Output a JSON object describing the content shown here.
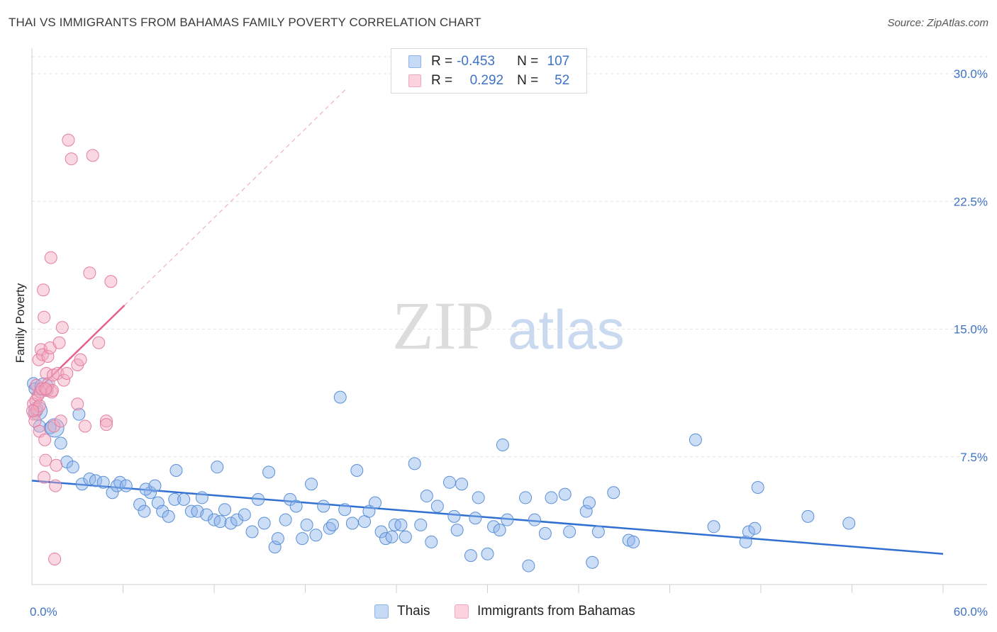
{
  "title": "THAI VS IMMIGRANTS FROM BAHAMAS FAMILY POVERTY CORRELATION CHART",
  "source": "Source: ZipAtlas.com",
  "watermark": {
    "part1": "ZIP",
    "part2": "atlas"
  },
  "legend": {
    "rows": [
      {
        "r_label": "R =",
        "r_value": "-0.453",
        "n_label": "N =",
        "n_value": "107",
        "color": "#8fb4ea"
      },
      {
        "r_label": "R =",
        "r_value": "0.292",
        "n_label": "N =",
        "n_value": "52",
        "color": "#f2a8bf"
      }
    ]
  },
  "bottom_legend": [
    {
      "label": "Thais",
      "color": "#8fb4ea"
    },
    {
      "label": "Immigrants from Bahamas",
      "color": "#f2a8bf"
    }
  ],
  "chart_data": {
    "type": "scatter",
    "title": "THAI VS IMMIGRANTS FROM BAHAMAS FAMILY POVERTY CORRELATION CHART",
    "xlabel": "",
    "ylabel": "Family Poverty",
    "xlim": [
      0,
      60
    ],
    "ylim": [
      0,
      31
    ],
    "x_tick_labels": [
      {
        "value": 0,
        "label": "0.0%"
      },
      {
        "value": 60,
        "label": "60.0%"
      }
    ],
    "y_tick_labels": [
      {
        "value": 7.5,
        "label": "7.5%"
      },
      {
        "value": 15,
        "label": "15.0%"
      },
      {
        "value": 22.5,
        "label": "22.5%"
      },
      {
        "value": 30,
        "label": "30.0%"
      }
    ],
    "grid": true,
    "series": [
      {
        "name": "Thais",
        "color": "#8fb4ea",
        "stroke": "#5a8fd8",
        "trend": {
          "x": [
            0,
            60
          ],
          "y": [
            6.1,
            1.8
          ],
          "color": "#2f6fd1"
        },
        "points": [
          [
            0.1,
            11.8
          ],
          [
            0.2,
            11.5
          ],
          [
            0.3,
            10.2
          ],
          [
            0.5,
            9.3
          ],
          [
            1.2,
            9.2
          ],
          [
            1.9,
            8.3
          ],
          [
            3.1,
            10.0
          ],
          [
            2.3,
            7.2
          ],
          [
            2.7,
            6.9
          ],
          [
            3.3,
            5.9
          ],
          [
            3.8,
            6.2
          ],
          [
            4.2,
            6.1
          ],
          [
            4.7,
            6.0
          ],
          [
            5.3,
            5.4
          ],
          [
            5.6,
            5.8
          ],
          [
            5.8,
            6.0
          ],
          [
            6.2,
            5.8
          ],
          [
            7.1,
            4.7
          ],
          [
            7.4,
            4.3
          ],
          [
            7.8,
            5.4
          ],
          [
            7.5,
            5.6
          ],
          [
            8.1,
            5.8
          ],
          [
            8.3,
            4.8
          ],
          [
            8.6,
            4.3
          ],
          [
            9.0,
            4.0
          ],
          [
            9.4,
            5.0
          ],
          [
            9.5,
            6.7
          ],
          [
            10.0,
            5.0
          ],
          [
            10.5,
            4.3
          ],
          [
            10.9,
            4.3
          ],
          [
            11.2,
            5.1
          ],
          [
            11.5,
            4.1
          ],
          [
            12.0,
            3.8
          ],
          [
            12.4,
            3.7
          ],
          [
            12.7,
            4.4
          ],
          [
            12.2,
            6.9
          ],
          [
            13.1,
            3.6
          ],
          [
            13.5,
            3.8
          ],
          [
            14.0,
            4.1
          ],
          [
            14.5,
            3.1
          ],
          [
            14.9,
            5.0
          ],
          [
            15.3,
            3.6
          ],
          [
            15.6,
            6.6
          ],
          [
            16.0,
            2.2
          ],
          [
            16.2,
            2.7
          ],
          [
            16.7,
            3.8
          ],
          [
            17.0,
            5.0
          ],
          [
            17.4,
            4.6
          ],
          [
            17.8,
            2.7
          ],
          [
            18.1,
            3.5
          ],
          [
            18.4,
            5.9
          ],
          [
            18.7,
            2.9
          ],
          [
            19.2,
            4.6
          ],
          [
            19.6,
            3.3
          ],
          [
            19.8,
            3.5
          ],
          [
            20.3,
            11.0
          ],
          [
            20.6,
            4.4
          ],
          [
            21.1,
            3.6
          ],
          [
            21.4,
            6.7
          ],
          [
            21.9,
            3.7
          ],
          [
            22.2,
            4.3
          ],
          [
            22.6,
            4.8
          ],
          [
            23.0,
            3.1
          ],
          [
            23.3,
            2.7
          ],
          [
            23.7,
            2.8
          ],
          [
            23.9,
            3.5
          ],
          [
            24.3,
            3.5
          ],
          [
            24.6,
            2.8
          ],
          [
            25.2,
            7.1
          ],
          [
            25.6,
            3.5
          ],
          [
            26.0,
            5.2
          ],
          [
            26.3,
            2.5
          ],
          [
            26.7,
            4.6
          ],
          [
            27.5,
            6.0
          ],
          [
            27.8,
            4.0
          ],
          [
            28.0,
            3.2
          ],
          [
            28.3,
            5.9
          ],
          [
            28.9,
            1.7
          ],
          [
            29.2,
            3.9
          ],
          [
            29.4,
            5.1
          ],
          [
            30.0,
            1.8
          ],
          [
            30.4,
            3.4
          ],
          [
            30.8,
            3.2
          ],
          [
            31.0,
            8.2
          ],
          [
            31.3,
            3.8
          ],
          [
            32.5,
            5.1
          ],
          [
            32.7,
            1.1
          ],
          [
            33.1,
            3.8
          ],
          [
            33.8,
            3.0
          ],
          [
            34.2,
            5.1
          ],
          [
            35.1,
            5.3
          ],
          [
            35.4,
            3.1
          ],
          [
            36.5,
            4.3
          ],
          [
            36.7,
            4.8
          ],
          [
            36.9,
            1.3
          ],
          [
            37.3,
            3.1
          ],
          [
            38.3,
            5.4
          ],
          [
            39.3,
            2.6
          ],
          [
            39.6,
            2.5
          ],
          [
            43.7,
            8.5
          ],
          [
            44.9,
            3.4
          ],
          [
            47.0,
            2.5
          ],
          [
            47.2,
            3.1
          ],
          [
            47.6,
            3.3
          ],
          [
            47.8,
            5.7
          ],
          [
            51.1,
            4.0
          ],
          [
            53.8,
            3.6
          ]
        ],
        "big_points": [
          [
            0.8,
            11.6
          ],
          [
            1.5,
            9.2
          ],
          [
            0.4,
            10.2
          ]
        ]
      },
      {
        "name": "Immigrants from Bahamas",
        "color": "#f2a8bf",
        "stroke": "#e57da0",
        "trend": {
          "x": [
            0,
            6.1
          ],
          "y": [
            11.1,
            16.4
          ],
          "color": "#e5608a",
          "dash_to": {
            "x": 20.8,
            "y": 29.2
          }
        },
        "points": [
          [
            0.1,
            10.6
          ],
          [
            0.15,
            10.0
          ],
          [
            0.2,
            9.6
          ],
          [
            0.25,
            10.8
          ],
          [
            0.3,
            11.7
          ],
          [
            0.35,
            10.3
          ],
          [
            0.4,
            11.1
          ],
          [
            0.45,
            13.2
          ],
          [
            0.5,
            9.0
          ],
          [
            0.5,
            10.5
          ],
          [
            0.55,
            11.3
          ],
          [
            0.6,
            13.8
          ],
          [
            0.65,
            11.5
          ],
          [
            0.7,
            13.5
          ],
          [
            0.75,
            17.3
          ],
          [
            0.8,
            15.7
          ],
          [
            0.8,
            6.3
          ],
          [
            0.85,
            8.5
          ],
          [
            0.9,
            7.3
          ],
          [
            0.95,
            12.4
          ],
          [
            1.0,
            11.4
          ],
          [
            1.05,
            13.4
          ],
          [
            1.1,
            11.8
          ],
          [
            1.2,
            13.9
          ],
          [
            1.25,
            19.2
          ],
          [
            1.3,
            11.3
          ],
          [
            1.35,
            11.4
          ],
          [
            1.4,
            12.3
          ],
          [
            1.45,
            9.3
          ],
          [
            1.5,
            1.5
          ],
          [
            1.55,
            5.8
          ],
          [
            1.6,
            7.0
          ],
          [
            1.7,
            12.4
          ],
          [
            1.8,
            14.2
          ],
          [
            1.9,
            9.6
          ],
          [
            2.0,
            15.1
          ],
          [
            2.1,
            12.0
          ],
          [
            2.3,
            12.4
          ],
          [
            2.4,
            26.1
          ],
          [
            2.6,
            25.0
          ],
          [
            3.0,
            10.6
          ],
          [
            3.0,
            12.9
          ],
          [
            3.2,
            13.2
          ],
          [
            3.5,
            9.3
          ],
          [
            3.8,
            18.3
          ],
          [
            4.0,
            25.2
          ],
          [
            4.4,
            14.2
          ],
          [
            4.9,
            9.6
          ],
          [
            4.9,
            9.4
          ],
          [
            5.2,
            17.8
          ],
          [
            0.05,
            10.2
          ],
          [
            0.9,
            11.5
          ]
        ]
      }
    ]
  }
}
